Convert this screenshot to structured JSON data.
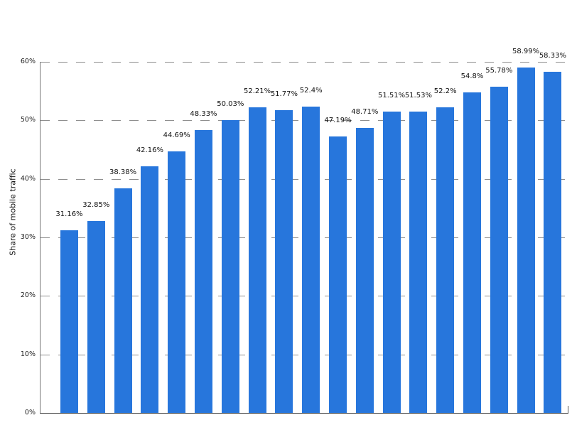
{
  "chart_data": {
    "type": "bar",
    "title": "",
    "xlabel": "",
    "ylabel": "Share of mobile traffic",
    "ylim": [
      0,
      60
    ],
    "yticks": [
      "0%",
      "10%",
      "20%",
      "30%",
      "40%",
      "50%",
      "60%"
    ],
    "grid": true,
    "legend": null,
    "bar_color": "#2776dc",
    "categories": [],
    "values": [
      31.16,
      32.85,
      38.38,
      42.16,
      44.69,
      48.33,
      50.03,
      52.21,
      51.77,
      52.4,
      47.19,
      48.71,
      51.51,
      51.53,
      52.2,
      54.8,
      55.78,
      58.99,
      58.33
    ],
    "labels": [
      "31.16%",
      "32.85%",
      "38.38%",
      "42.16%",
      "44.69%",
      "48.33%",
      "50.03%",
      "52.21%",
      "51.77%",
      "52.4%",
      "47.19%",
      "48.71%",
      "51.51%",
      "51.53%",
      "52.2%",
      "54.8%",
      "55.78%",
      "58.99%",
      "58.33%"
    ]
  }
}
